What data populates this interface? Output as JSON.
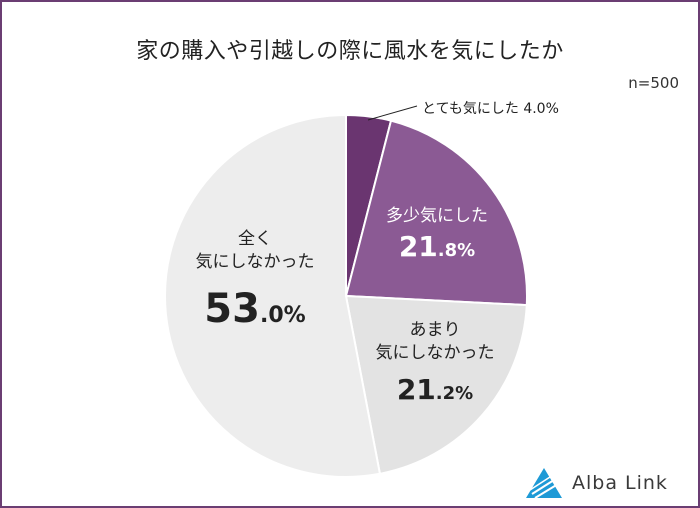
{
  "title": "家の購入や引越しの際に風水を気にしたか",
  "sample_size": "n=500",
  "brand": {
    "name": "Alba Link",
    "color": "#1e9ad6"
  },
  "chart_data": {
    "type": "pie",
    "title": "家の購入や引越しの際に風水を気にしたか",
    "slices": [
      {
        "label": "とても気にした",
        "value": 4.0,
        "display": "とても気にした 4.0%",
        "color": "#6a3570"
      },
      {
        "label": "多少気にした",
        "value": 21.8,
        "num": "21",
        "dec": ".8%",
        "color": "#8b5a94"
      },
      {
        "label": "あまり気にしなかった",
        "value": 21.2,
        "num": "21",
        "dec": ".2%",
        "color": "#e3e3e3"
      },
      {
        "label": "全く気にしなかった",
        "value": 53.0,
        "num": "53",
        "dec": ".0%",
        "color": "#ededed"
      }
    ]
  },
  "labels": {
    "very": "とても気にした 4.0%",
    "somewhat_line1": "多少気にした",
    "not_much_line1": "あまり",
    "not_much_line2": "気にしなかった",
    "not_at_all_line1": "全く",
    "not_at_all_line2": "気にしなかった"
  }
}
